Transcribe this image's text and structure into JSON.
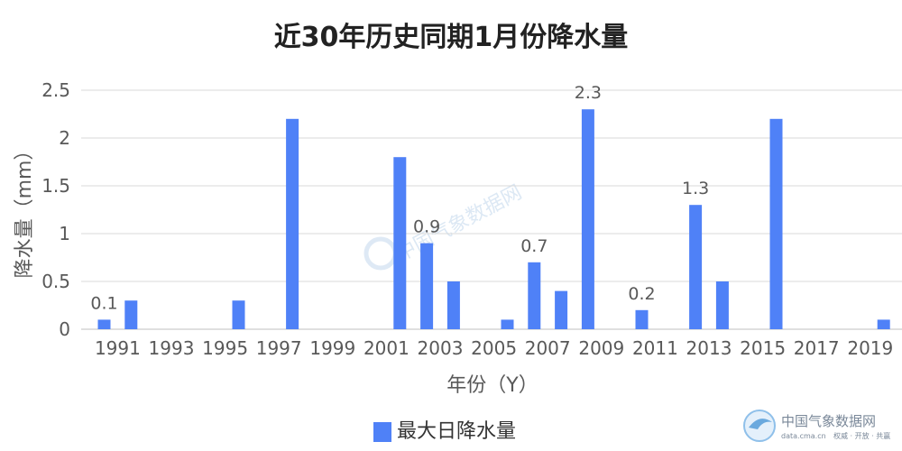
{
  "chart_data": {
    "type": "bar",
    "title": "近30年历史同期1月份降水量",
    "xlabel": "年份（Y）",
    "ylabel": "降水量（mm）",
    "ylim": [
      0,
      2.5
    ],
    "yticks": [
      "0",
      "0.5",
      "1",
      "1.5",
      "2",
      "2.5"
    ],
    "grid": true,
    "legend_position": "bottom",
    "x_tick_labels": [
      "1991",
      "1993",
      "1995",
      "1997",
      "1999",
      "2001",
      "2003",
      "2005",
      "2007",
      "2009",
      "2011",
      "2013",
      "2015",
      "2017",
      "2019"
    ],
    "categories": [
      "1991",
      "1992",
      "1993",
      "1994",
      "1995",
      "1996",
      "1997",
      "1998",
      "1999",
      "2000",
      "2001",
      "2002",
      "2003",
      "2004",
      "2005",
      "2006",
      "2007",
      "2008",
      "2009",
      "2010",
      "2011",
      "2012",
      "2013",
      "2014",
      "2015",
      "2016",
      "2017",
      "2018",
      "2019",
      "2020"
    ],
    "series": [
      {
        "name": "最大日降水量",
        "color": "#4f81f7",
        "values": [
          0.1,
          0.3,
          0,
          0,
          0,
          0.3,
          0,
          2.2,
          0,
          0,
          0,
          1.8,
          0.9,
          0.5,
          0,
          0.1,
          0.7,
          0.4,
          2.3,
          0,
          0.2,
          0,
          1.3,
          0.5,
          0,
          2.2,
          0,
          0,
          0,
          0.1
        ]
      }
    ],
    "data_labels": [
      {
        "category": "1991",
        "text": "0.1"
      },
      {
        "category": "2003",
        "text": "0.9"
      },
      {
        "category": "2007",
        "text": "0.7"
      },
      {
        "category": "2009",
        "text": "2.3"
      },
      {
        "category": "2011",
        "text": "0.2"
      },
      {
        "category": "2013",
        "text": "1.3"
      }
    ]
  },
  "watermark": {
    "text": "中国气象数据网"
  },
  "logo": {
    "name": "中国气象数据网",
    "url": "data.cma.cn",
    "slogan": "权威 · 开放 · 共赢",
    "icon": "cma-logo-icon"
  }
}
